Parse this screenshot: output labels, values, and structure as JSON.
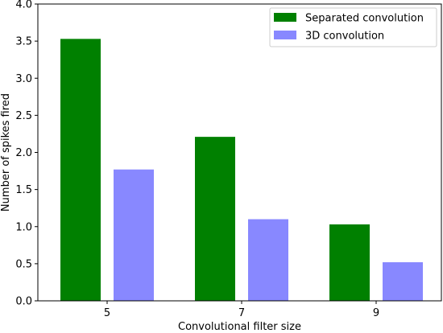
{
  "chart_data": {
    "type": "bar",
    "categories": [
      "5",
      "7",
      "9"
    ],
    "series": [
      {
        "name": "Separated convolution",
        "values": [
          3.53,
          2.21,
          1.03
        ],
        "color": "#008000"
      },
      {
        "name": "3D convolution",
        "values": [
          1.77,
          1.1,
          0.52
        ],
        "color": "#8888ff"
      }
    ],
    "xlabel": "Convolutional filter size",
    "ylabel": "Number of spikes fired",
    "ylim": [
      0,
      4.0
    ],
    "yticks": [
      "0.0",
      "0.5",
      "1.0",
      "1.5",
      "2.0",
      "2.5",
      "3.0",
      "3.5",
      "4.0"
    ],
    "grid": false,
    "legend_position": "top-right"
  }
}
